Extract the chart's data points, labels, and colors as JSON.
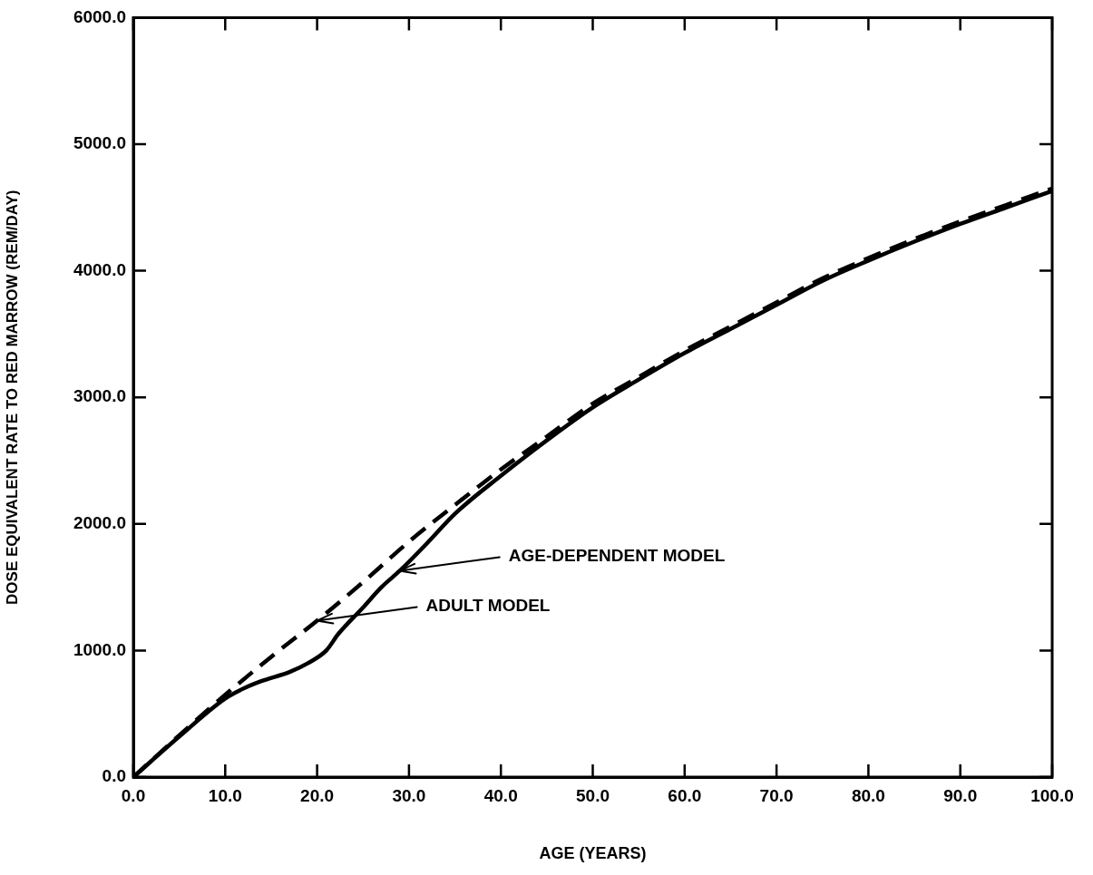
{
  "chart_data": {
    "type": "line",
    "xlabel": "AGE (YEARS)",
    "ylabel": "DOSE EQUIVALENT RATE TO RED MARROW (REM/DAY)",
    "xlim": [
      0,
      100
    ],
    "ylim": [
      0,
      6000
    ],
    "xticks": [
      {
        "value": 0,
        "label": "0.0"
      },
      {
        "value": 10,
        "label": "10.0"
      },
      {
        "value": 20,
        "label": "20.0"
      },
      {
        "value": 30,
        "label": "30.0"
      },
      {
        "value": 40,
        "label": "40.0"
      },
      {
        "value": 50,
        "label": "50.0"
      },
      {
        "value": 60,
        "label": "60.0"
      },
      {
        "value": 70,
        "label": "70.0"
      },
      {
        "value": 80,
        "label": "80.0"
      },
      {
        "value": 90,
        "label": "90.0"
      },
      {
        "value": 100,
        "label": "100.0"
      }
    ],
    "yticks": [
      {
        "value": 0,
        "label": "0.0"
      },
      {
        "value": 1000,
        "label": "1000.0"
      },
      {
        "value": 2000,
        "label": "2000.0"
      },
      {
        "value": 3000,
        "label": "3000.0"
      },
      {
        "value": 4000,
        "label": "4000.0"
      },
      {
        "value": 5000,
        "label": "5000.0"
      },
      {
        "value": 6000,
        "label": "6000.0"
      }
    ],
    "grid": false,
    "legend": false,
    "marker": "none",
    "series": [
      {
        "color": "#000000",
        "line_style": "dashed",
        "x": [
          0,
          5,
          10,
          15,
          20,
          25,
          30,
          35,
          40,
          45,
          50,
          55,
          60,
          65,
          70,
          75,
          80,
          85,
          90,
          95,
          100
        ],
        "values": [
          0,
          330,
          650,
          950,
          1236,
          1540,
          1860,
          2150,
          2430,
          2690,
          2950,
          3160,
          3370,
          3560,
          3750,
          3940,
          4100,
          4250,
          4390,
          4520,
          4650
        ]
      },
      {
        "color": "#000000",
        "line_style": "solid",
        "x": [
          0,
          5,
          10,
          12,
          14,
          17,
          19,
          21,
          22.3,
          25,
          27,
          29,
          32,
          35,
          40,
          45,
          50,
          55,
          60,
          65,
          70,
          75,
          80,
          85,
          90,
          95,
          100
        ],
        "values": [
          0,
          320,
          620,
          700,
          760,
          830,
          900,
          1000,
          1130,
          1340,
          1500,
          1630,
          1850,
          2080,
          2380,
          2660,
          2920,
          3140,
          3350,
          3540,
          3730,
          3920,
          4080,
          4230,
          4370,
          4500,
          4630
        ]
      }
    ],
    "annotations": [
      {
        "text": "AGE-DEPENDENT MODEL",
        "x": 29,
        "y": 1630
      },
      {
        "text": "ADULT MODEL",
        "x": 20,
        "y": 1236
      }
    ]
  }
}
